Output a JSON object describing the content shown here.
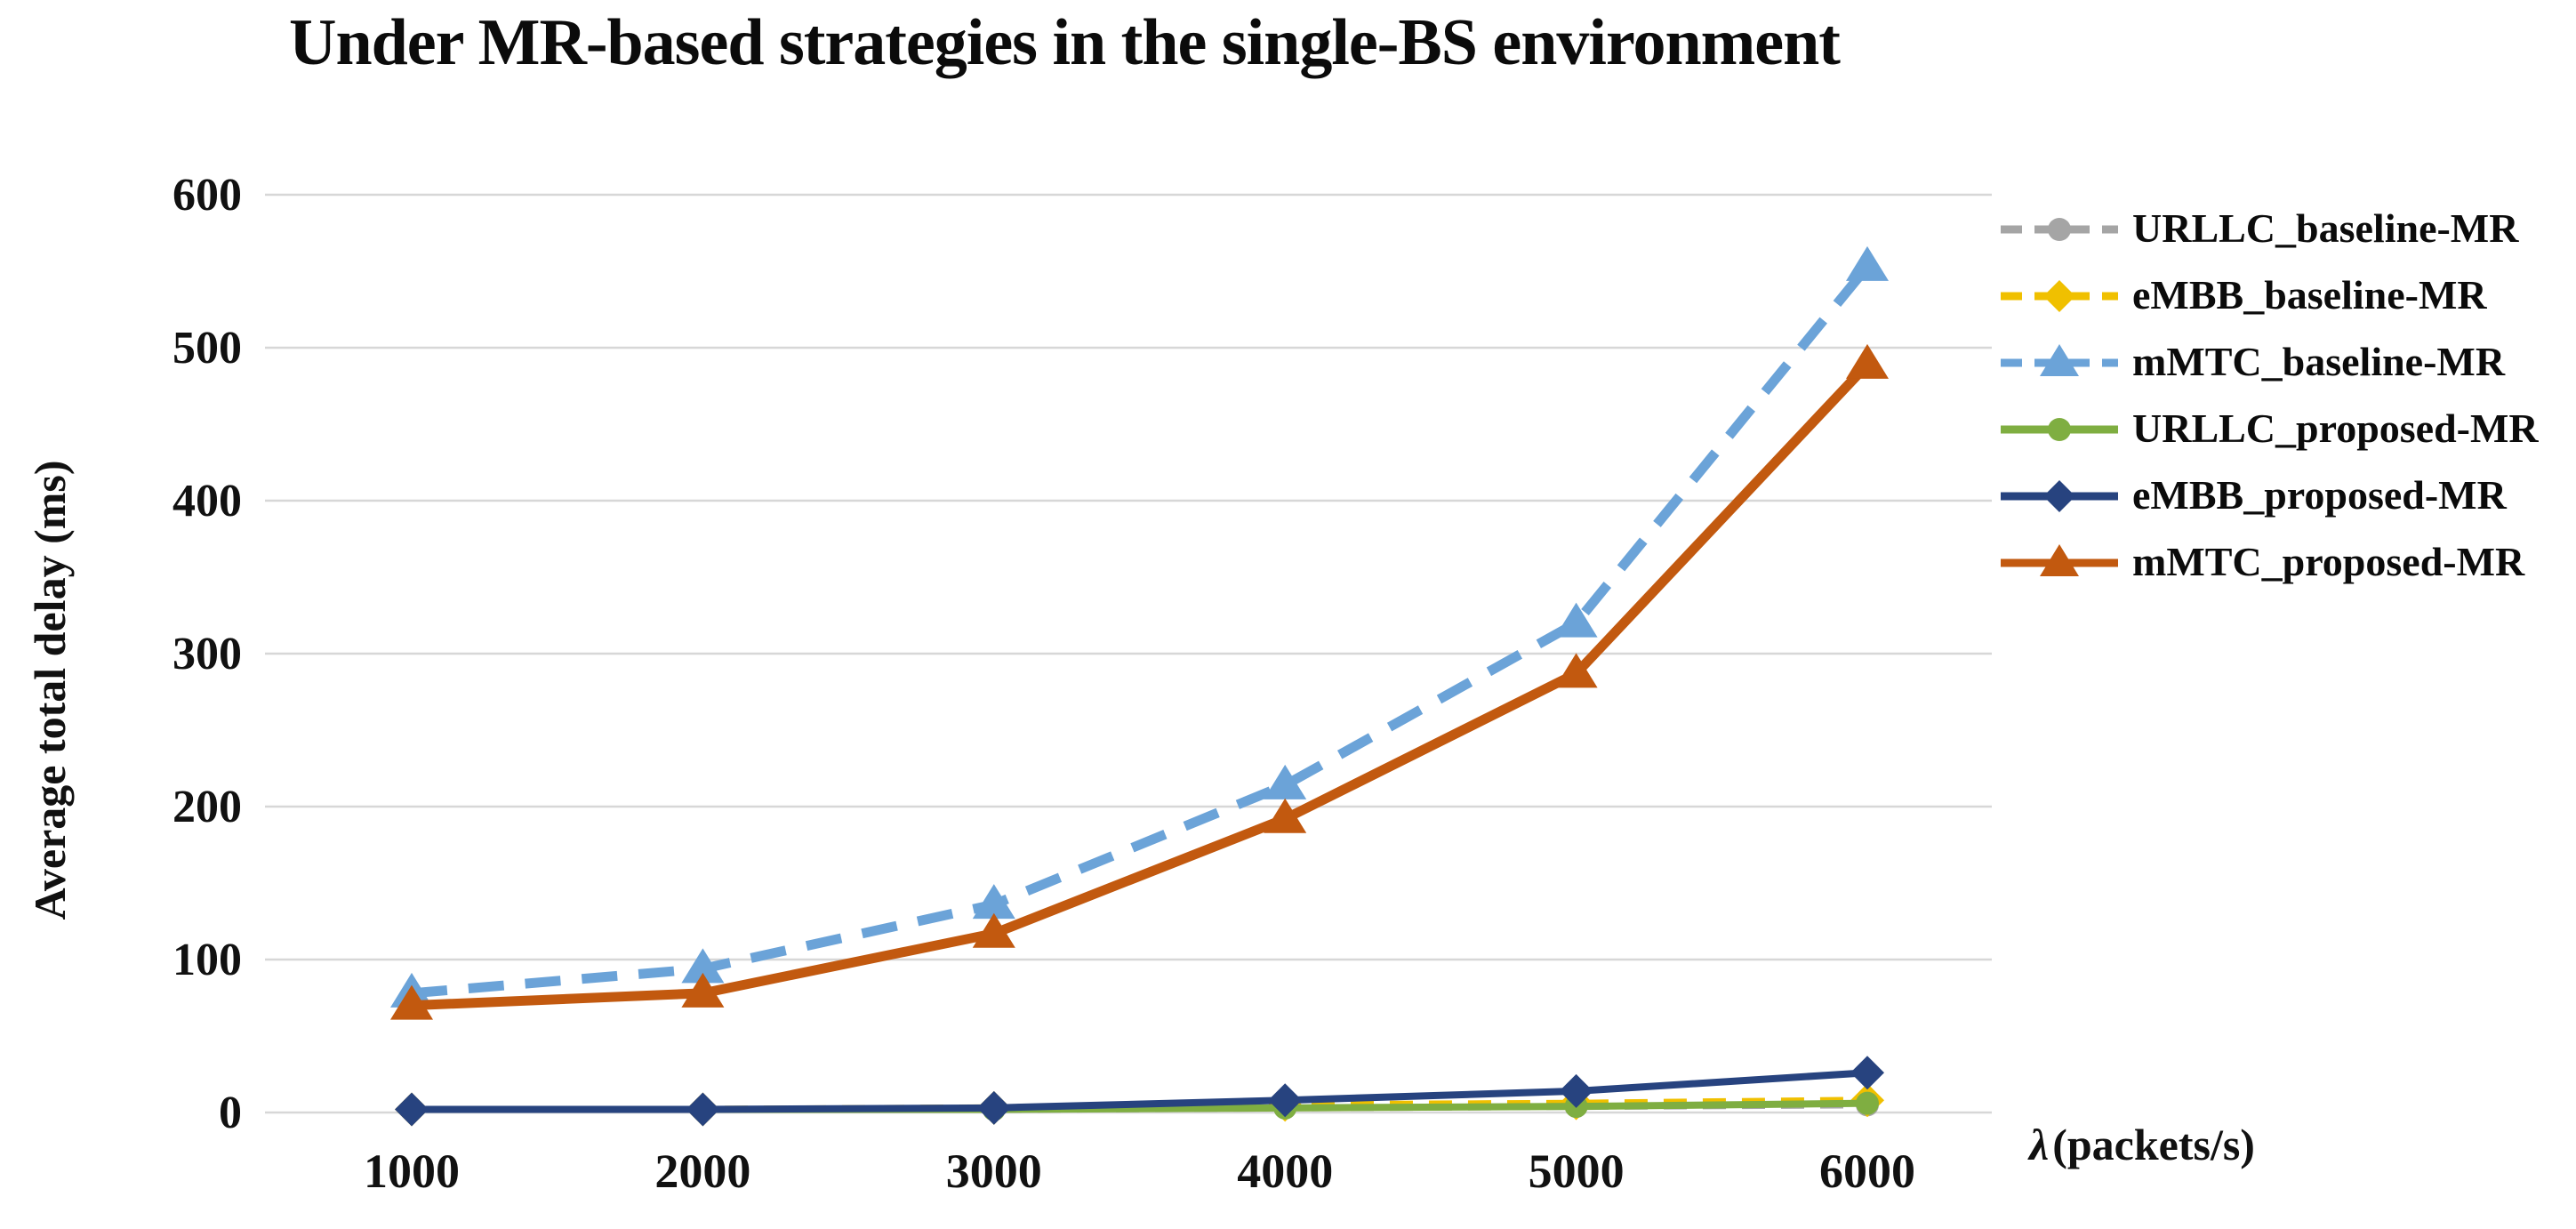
{
  "page": {
    "background": "#ffffff",
    "grid_color": "#d7d7d7",
    "text_color": "#111111"
  },
  "chart_data": {
    "type": "line",
    "title": "Under MR-based strategies in the single-BS environment",
    "xlabel": "λ (packets/s)",
    "xlabel_lambda": "λ",
    "xlabel_units": "(packets/s)",
    "ylabel": "Average total delay (ms)",
    "categories": [
      1000,
      2000,
      3000,
      4000,
      5000,
      6000
    ],
    "x_tick_labels": [
      "1000",
      "2000",
      "3000",
      "4000",
      "5000",
      "6000"
    ],
    "y_ticks": [
      0,
      100,
      200,
      300,
      400,
      500,
      600
    ],
    "ylim": [
      0,
      600
    ],
    "grid": "horizontal",
    "legend_position": "right",
    "series": [
      {
        "name": "URLLC_baseline-MR",
        "color": "#a5a5a5",
        "marker": "circle",
        "line": "dashed",
        "values": [
          2,
          2,
          2,
          3,
          4,
          5
        ]
      },
      {
        "name": "eMBB_baseline-MR",
        "color": "#f0c000",
        "marker": "diamond",
        "line": "dashed",
        "values": [
          2,
          2,
          3,
          5,
          6,
          8
        ]
      },
      {
        "name": "mMTC_baseline-MR",
        "color": "#6ba3d8",
        "marker": "triangle",
        "line": "dashed",
        "values": [
          78,
          94,
          136,
          214,
          320,
          553
        ]
      },
      {
        "name": "URLLC_proposed-MR",
        "color": "#7fae41",
        "marker": "circle",
        "line": "solid",
        "values": [
          2,
          2,
          2,
          3,
          4,
          6
        ]
      },
      {
        "name": "eMBB_proposed-MR",
        "color": "#27437f",
        "marker": "diamond",
        "line": "solid",
        "values": [
          2,
          2,
          3,
          8,
          14,
          26
        ]
      },
      {
        "name": "mMTC_proposed-MR",
        "color": "#c2590f",
        "marker": "triangle",
        "line": "solid",
        "values": [
          70,
          78,
          117,
          192,
          287,
          489
        ]
      }
    ]
  }
}
